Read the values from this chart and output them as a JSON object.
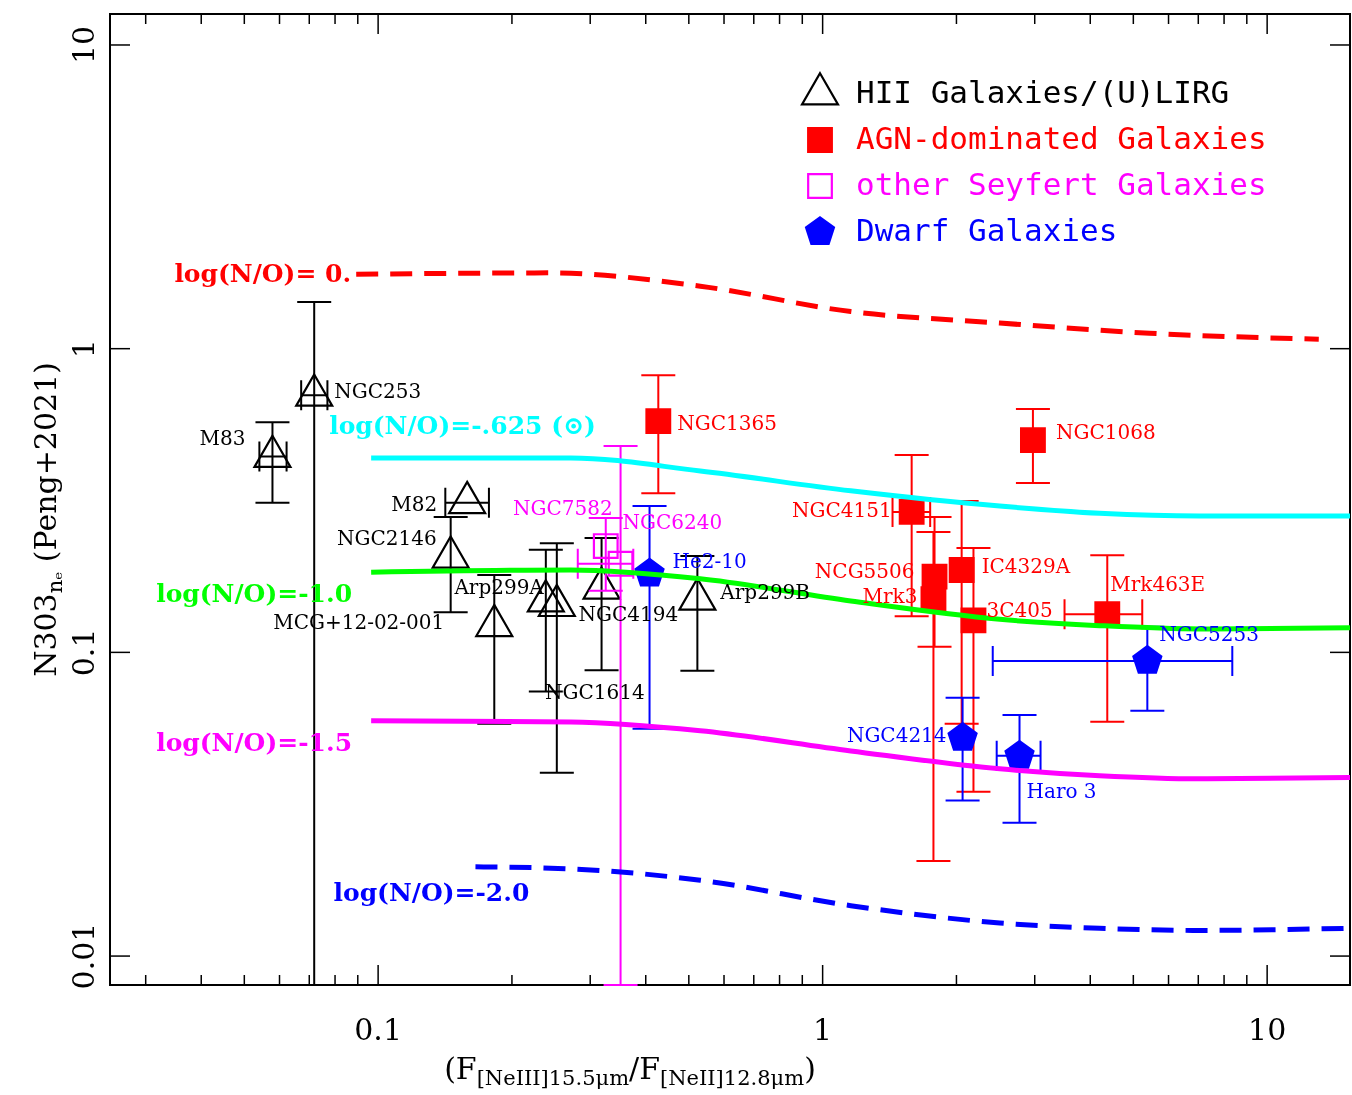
{
  "chart_data": {
    "type": "scatter",
    "xlabel": "(F$_{[NeIII]15.5μm}$/F$_{[NeII]12.8μm}$)",
    "ylabel": "N303$_{nₑ}$ (Peng+2021)",
    "log": "xy",
    "grid": false,
    "legend": "top right",
    "xlim": [
      0.025,
      15.4
    ],
    "ylim": [
      0.008,
      12.6
    ],
    "xticks": [
      {
        "value": 0.03,
        "label": null
      },
      {
        "value": 0.04,
        "label": null
      },
      {
        "value": 0.05,
        "label": null
      },
      {
        "value": 0.06,
        "label": null
      },
      {
        "value": 0.07,
        "label": null
      },
      {
        "value": 0.08,
        "label": null
      },
      {
        "value": 0.09,
        "label": null
      },
      0.1,
      {
        "value": 0.2,
        "label": null
      },
      {
        "value": 0.3,
        "label": null
      },
      {
        "value": 0.4,
        "label": null
      },
      {
        "value": 0.5,
        "label": null
      },
      {
        "value": 0.6,
        "label": null
      },
      {
        "value": 0.7,
        "label": null
      },
      {
        "value": 0.8,
        "label": null
      },
      {
        "value": 0.9,
        "label": null
      },
      1,
      {
        "value": 2,
        "label": null
      },
      {
        "value": 3,
        "label": null
      },
      {
        "value": 4,
        "label": null
      },
      {
        "value": 5,
        "label": null
      },
      {
        "value": 6,
        "label": null
      },
      {
        "value": 7,
        "label": null
      },
      {
        "value": 8,
        "label": null
      },
      {
        "value": 9,
        "label": null
      },
      10
    ],
    "yticks": [
      0.01,
      0.1,
      1,
      10
    ],
    "series": [
      {
        "name": "HII Galaxies/(U)LIRG",
        "type": "scatter",
        "marker": "triangle",
        "color": "#000000",
        "x": [
          0.058,
          0.072,
          0.159,
          0.146,
          0.239,
          0.183,
          0.319,
          0.253,
          0.524
        ],
        "values": [
          0.44,
          0.7,
          0.31,
          0.205,
          0.147,
          0.122,
          0.162,
          0.142,
          0.149
        ],
        "errors": [
          [
            0.31,
            0.57
          ],
          [
            0.008,
            1.42
          ],
          null,
          [
            0.135,
            0.278
          ],
          [
            0.074,
            0.217
          ],
          [
            0.058,
            0.179
          ],
          [
            0.087,
            0.237
          ],
          [
            0.04,
            0.228
          ],
          [
            0.0866,
            0.207
          ]
        ],
        "xerrors": [
          [
            0.0542,
            0.0624
          ],
          [
            0.0673,
            0.0771
          ],
          [
            0.142,
            0.178
          ],
          null,
          null,
          null,
          null,
          null,
          null
        ]
      },
      {
        "name": "AGN-dominated Galaxies",
        "type": "scatter",
        "marker": "square",
        "color": "#ff0000",
        "x": [
          0.428,
          2.98,
          1.59,
          1.79,
          1.78,
          2.06,
          2.19,
          4.38
        ],
        "values": [
          0.575,
          0.498,
          0.289,
          0.177,
          0.149,
          0.186,
          0.127,
          0.133
        ],
        "errors": [
          [
            0.333,
            0.815
          ],
          [
            0.36,
            0.63
          ],
          [
            0.131,
            0.445
          ],
          [
            0.104,
            0.278
          ],
          [
            0.0205,
            0.248
          ],
          [
            0.058,
            0.314
          ],
          [
            0.0346,
            0.22
          ],
          [
            0.0589,
            0.208
          ]
        ],
        "xerrors": [
          null,
          null,
          [
            1.44,
            1.75
          ],
          null,
          null,
          null,
          null,
          [
            3.51,
            5.25
          ]
        ]
      },
      {
        "name": "other Seyfert Galaxies",
        "type": "scatter",
        "marker": "square",
        "color": "#ff00ff",
        "x": [
          0.326,
          0.352
        ],
        "values": [
          0.223,
          0.195
        ],
        "errors": [
          [
            0.159,
            0.276
          ],
          [
            0.008,
            0.476
          ]
        ],
        "xerrors": [
          null,
          [
            0.282,
            0.376
          ]
        ]
      },
      {
        "name": "Dwarf Galaxies",
        "type": "scatter",
        "color": "#0000ff",
        "x": [
          0.409,
          5.39,
          2.07,
          2.78
        ],
        "values": [
          0.181,
          0.0934,
          0.0521,
          0.0455
        ],
        "errors": [
          [
            0.0558,
            0.302
          ],
          [
            0.064,
            0.121
          ],
          [
            0.0324,
            0.0706
          ],
          [
            0.0274,
            0.062
          ]
        ],
        "xerrors": [
          null,
          [
            2.42,
            8.37
          ],
          null,
          [
            2.47,
            3.1
          ]
        ]
      },
      {
        "name": "log(N/O)= 0.",
        "type": "line",
        "line_style": "dashed",
        "color": "#ff0000",
        "x": [
          0.0895,
          0.245,
          0.532,
          1.16,
          2.51,
          5.45,
          13.1
        ],
        "values": [
          1.75,
          1.77,
          1.6,
          1.32,
          1.21,
          1.12,
          1.07
        ]
      },
      {
        "name": "log(N/O)=-.625 (⊙)",
        "type": "line",
        "line_style": "solid",
        "color": "#00ffff",
        "x": [
          0.0967,
          0.272,
          0.532,
          1.16,
          2.51,
          4.21,
          7.06,
          15.4
        ],
        "values": [
          0.435,
          0.435,
          0.394,
          0.339,
          0.302,
          0.286,
          0.28,
          0.28
        ]
      },
      {
        "name": "log(N/O)=-1.0",
        "type": "line",
        "line_style": "solid",
        "color": "#00ff00",
        "x": [
          0.0967,
          0.272,
          0.532,
          1.16,
          2.51,
          4.21,
          7.06,
          15.4
        ],
        "values": [
          0.183,
          0.186,
          0.174,
          0.147,
          0.128,
          0.122,
          0.119,
          0.12
        ]
      },
      {
        "name": "log(N/O)=-1.5",
        "type": "line",
        "line_style": "solid",
        "color": "#ff00ff",
        "x": [
          0.0967,
          0.272,
          0.532,
          1.16,
          2.51,
          4.21,
          7.06,
          15.4
        ],
        "values": [
          0.0593,
          0.0588,
          0.055,
          0.0472,
          0.0412,
          0.0391,
          0.0382,
          0.0386
        ]
      },
      {
        "name": "log(N/O)=-2.0",
        "type": "line",
        "line_style": "dashed",
        "color": "#0000ff",
        "x": [
          0.166,
          0.272,
          0.532,
          1.16,
          2.51,
          4.21,
          7.06,
          15.4
        ],
        "values": [
          0.0196,
          0.0193,
          0.0177,
          0.0146,
          0.0128,
          0.0123,
          0.0121,
          0.0123
        ]
      }
    ],
    "annotations": [
      {
        "text": "M83",
        "x": 0.058,
        "y": 0.44
      },
      {
        "text": "NGC253",
        "x": 0.072,
        "y": 0.7
      },
      {
        "text": "M82",
        "x": 0.159,
        "y": 0.31
      },
      {
        "text": "NGC2146",
        "x": 0.146,
        "y": 0.205
      },
      {
        "text": "Arp299A",
        "x": 0.239,
        "y": 0.147
      },
      {
        "text": "MCG+12-02-001",
        "x": 0.183,
        "y": 0.122
      },
      {
        "text": "NGC4194",
        "x": 0.319,
        "y": 0.162
      },
      "NGC1614",
      {
        "text": "Arp299B",
        "x": 0.524,
        "y": 0.149
      },
      {
        "text": "NGC7582",
        "x": 0.326,
        "y": 0.223
      },
      {
        "text": "NGC6240",
        "x": 0.352,
        "y": 0.195
      },
      {
        "text": "He2-10",
        "x": 0.409,
        "y": 0.181
      },
      {
        "text": "NGC1365",
        "x": 0.428,
        "y": 0.575
      },
      {
        "text": "NGC1068",
        "x": 2.98,
        "y": 0.498
      },
      {
        "text": "NGC4151",
        "x": 1.59,
        "y": 0.289
      },
      {
        "text": "NCG5506",
        "x": 1.79,
        "y": 0.177
      },
      {
        "text": "Mrk3",
        "x": 1.78,
        "y": 0.149
      },
      {
        "text": "IC4329A",
        "x": 2.06,
        "y": 0.186
      },
      {
        "text": "3C405",
        "x": 2.19,
        "y": 0.127
      },
      {
        "text": "Mrk463E",
        "x": 4.38,
        "y": 0.133
      },
      {
        "text": "NGC5253",
        "x": 5.39,
        "y": 0.0934
      },
      {
        "text": "NGC4214",
        "x": 2.07,
        "y": 0.0521
      },
      {
        "text": "Haro 3",
        "x": 2.78,
        "y": 0.0455
      }
    ]
  }
}
